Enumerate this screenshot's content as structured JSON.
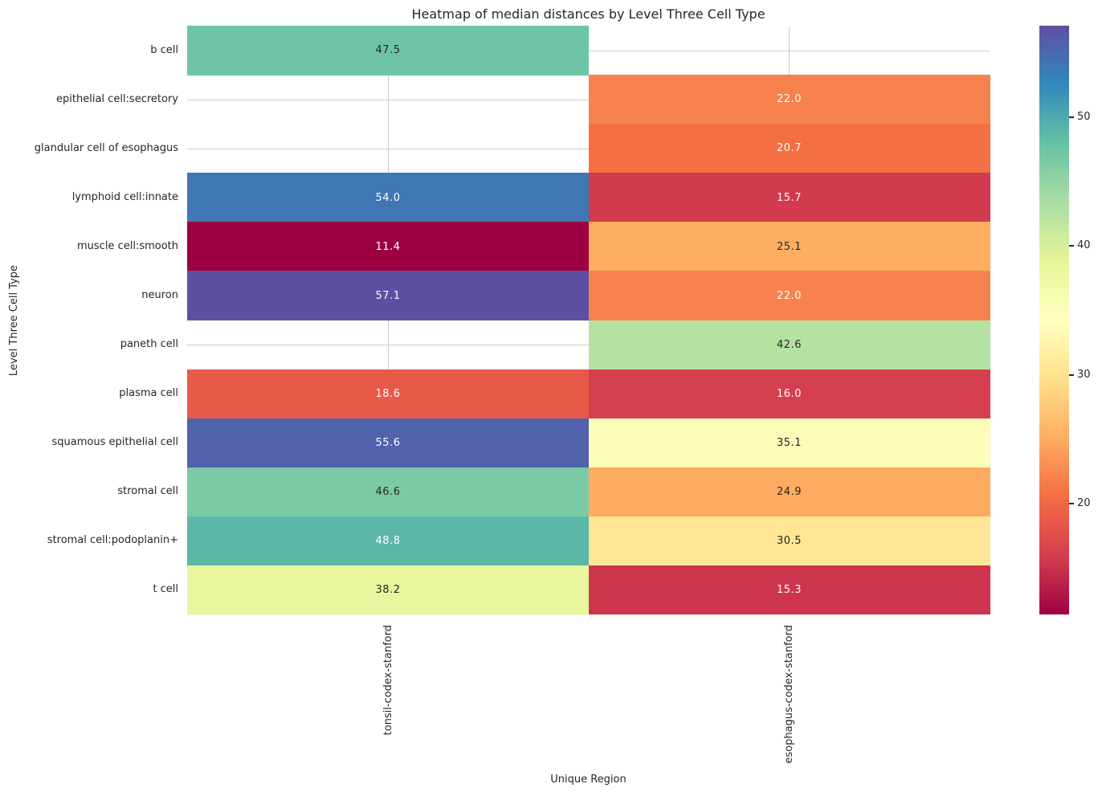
{
  "chart_data": {
    "type": "heatmap",
    "title": "Heatmap of median distances by Level Three Cell Type",
    "xlabel": "Unique Region",
    "ylabel": "Level Three Cell Type",
    "columns": [
      "tonsil-codex-stanford",
      "esophagus-codex-stanford"
    ],
    "rows": [
      "b cell",
      "epithelial cell:secretory",
      "glandular cell of esophagus",
      "lymphoid cell:innate",
      "muscle cell:smooth",
      "neuron",
      "paneth cell",
      "plasma cell",
      "squamous epithelial cell",
      "stromal cell",
      "stromal cell:podoplanin+",
      "t cell"
    ],
    "values": [
      [
        47.5,
        null
      ],
      [
        null,
        22.0
      ],
      [
        null,
        20.7
      ],
      [
        54.0,
        15.7
      ],
      [
        11.4,
        25.1
      ],
      [
        57.1,
        22.0
      ],
      [
        null,
        42.6
      ],
      [
        18.6,
        16.0
      ],
      [
        55.6,
        35.1
      ],
      [
        46.6,
        24.9
      ],
      [
        48.8,
        30.5
      ],
      [
        38.2,
        15.3
      ]
    ],
    "vmin": 11.4,
    "vmax": 57.1,
    "colormap": {
      "name": "Spectral",
      "stops": [
        "#9e0142",
        "#d53e4f",
        "#f46d43",
        "#fdae61",
        "#fee08b",
        "#ffffbf",
        "#e6f598",
        "#abdda4",
        "#66c2a5",
        "#3288bd",
        "#5e4fa2"
      ]
    },
    "colorbar_ticks": [
      20,
      30,
      40,
      50
    ],
    "grid": true,
    "legend_position": "right-colorbar",
    "colors": {
      "grid": "#cbcbcb",
      "text": "#262626",
      "annot_dark": "#262626",
      "annot_light": "#ffffff",
      "background": "#ffffff"
    }
  }
}
